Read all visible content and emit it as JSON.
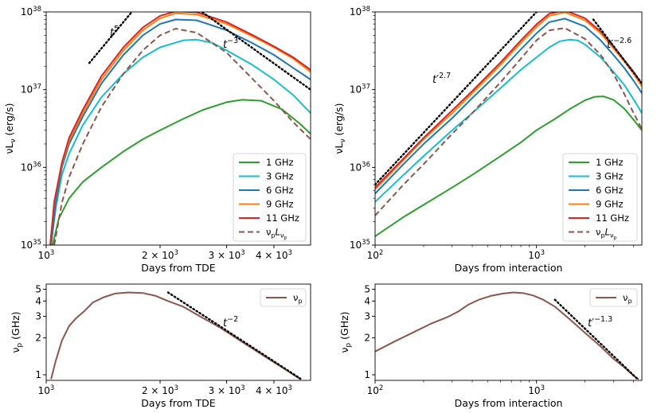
{
  "chart_data": [
    {
      "id": "tl",
      "type": "line",
      "xscale": "log",
      "yscale": "log",
      "xlim": [
        1000,
        5000
      ],
      "ylim": [
        1e+35,
        1e+38
      ],
      "xlabel": "Days from TDE",
      "ylabel_main": "νL",
      "ylabel_sub": "ν",
      "ylabel_unit": " (erg/s)",
      "xticks": [
        {
          "v": 1000,
          "base": "10",
          "exp": "3"
        },
        {
          "v": 2000,
          "base": "2 × 10",
          "exp": "3"
        },
        {
          "v": 3000,
          "base": "3 × 10",
          "exp": "3"
        },
        {
          "v": 4000,
          "base": "4 × 10",
          "exp": "3"
        }
      ],
      "yticks": [
        {
          "v": 1e+35,
          "base": "10",
          "exp": "35"
        },
        {
          "v": 1e+36,
          "base": "10",
          "exp": "36"
        },
        {
          "v": 1e+37,
          "base": "10",
          "exp": "37"
        },
        {
          "v": 1e+38,
          "base": "10",
          "exp": "38"
        }
      ],
      "series": [
        {
          "name": "1 GHz",
          "color": "#2ca02c",
          "x": [
            1040,
            1080,
            1150,
            1250,
            1400,
            1600,
            1800,
            2000,
            2300,
            2600,
            3000,
            3300,
            3700,
            4200,
            4700,
            5000
          ],
          "y": [
            1e+35,
            2.2e+35,
            4e+35,
            6.5e+35,
            1e+36,
            1.6e+36,
            2.3e+36,
            3e+36,
            4.2e+36,
            5.5e+36,
            6.9e+36,
            7.4e+36,
            7.2e+36,
            5.6e+36,
            3.6e+36,
            2.7e+36
          ]
        },
        {
          "name": "3 GHz",
          "color": "#17becf",
          "x": [
            1030,
            1060,
            1100,
            1150,
            1250,
            1400,
            1600,
            1800,
            2000,
            2300,
            2500,
            2750,
            3000,
            3500,
            4000,
            4500,
            5000
          ],
          "y": [
            1e+35,
            3e+35,
            8e+35,
            1.5e+36,
            3.5e+36,
            8e+36,
            1.6e+37,
            2.6e+37,
            3.5e+37,
            4.3e+37,
            4.4e+37,
            4e+37,
            3.2e+37,
            2.1e+37,
            1.35e+37,
            8.5e+36,
            5e+36
          ]
        },
        {
          "name": "6 GHz",
          "color": "#1f77b4",
          "x": [
            1030,
            1060,
            1100,
            1150,
            1250,
            1400,
            1600,
            1800,
            2000,
            2200,
            2500,
            3000,
            3500,
            4000,
            4500,
            5000
          ],
          "y": [
            1e+35,
            3.5e+35,
            1e+36,
            2e+36,
            4.5e+36,
            1.2e+37,
            2.8e+37,
            5e+37,
            7e+37,
            8e+37,
            7.8e+37,
            5.8e+37,
            4e+37,
            2.8e+37,
            1.9e+37,
            1.35e+37
          ]
        },
        {
          "name": "9 GHz",
          "color": "#ff7f0e",
          "x": [
            1025,
            1050,
            1100,
            1150,
            1250,
            1400,
            1600,
            1800,
            2000,
            2200,
            2500,
            3000,
            3500,
            4000,
            4500,
            5000
          ],
          "y": [
            1e+35,
            3.5e+35,
            1.1e+36,
            2.2e+36,
            5e+36,
            1.35e+37,
            3.2e+37,
            5.8e+37,
            8.3e+37,
            9.6e+37,
            9.3e+37,
            7e+37,
            4.9e+37,
            3.5e+37,
            2.5e+37,
            1.7e+37
          ]
        },
        {
          "name": "11 GHz",
          "color": "#d62728",
          "x": [
            1025,
            1050,
            1100,
            1150,
            1250,
            1400,
            1600,
            1800,
            2000,
            2200,
            2500,
            3000,
            3500,
            4000,
            4500,
            5000
          ],
          "y": [
            1e+35,
            3.6e+35,
            1.15e+36,
            2.4e+36,
            5.5e+36,
            1.5e+37,
            3.5e+37,
            6.3e+37,
            8.9e+37,
            1.02e+38,
            9.9e+37,
            7.4e+37,
            5.1e+37,
            3.6e+37,
            2.6e+37,
            1.8e+37
          ]
        },
        {
          "name": "ν_pL_ν_p",
          "color": "#8c564b",
          "dash": "7,4",
          "x": [
            1050,
            1100,
            1150,
            1250,
            1400,
            1600,
            1800,
            2000,
            2200,
            2500,
            3000,
            3500,
            4000,
            4500,
            5000
          ],
          "y": [
            1e+35,
            3.5e+35,
            7.5e+35,
            2e+36,
            6e+36,
            1.6e+37,
            3.2e+37,
            5e+37,
            6.1e+37,
            5.4e+37,
            3e+37,
            1.4e+37,
            7.2e+36,
            3.8e+36,
            2.3e+36
          ]
        }
      ],
      "guides": [
        {
          "label_base": "t",
          "label_exp": "5",
          "x": [
            1300,
            1750
          ],
          "y": [
            2.2e+37,
            1.25e+38
          ]
        },
        {
          "label_base": "t",
          "label_exp": "−3",
          "x": [
            2450,
            5000
          ],
          "y": [
            1.2e+38,
            1e+37
          ]
        }
      ]
    },
    {
      "id": "tr",
      "type": "line",
      "xscale": "log",
      "yscale": "log",
      "xlim": [
        100,
        4500
      ],
      "ylim": [
        1e+35,
        1e+38
      ],
      "xlabel": "Days from interaction",
      "ylabel_main": "νL",
      "ylabel_sub": "ν",
      "ylabel_unit": " (erg/s)",
      "xticks": [
        {
          "v": 100,
          "base": "10",
          "exp": "2"
        },
        {
          "v": 1000,
          "base": "10",
          "exp": "3"
        }
      ],
      "yticks": [
        {
          "v": 1e+35,
          "base": "10",
          "exp": "35"
        },
        {
          "v": 1e+36,
          "base": "10",
          "exp": "36"
        },
        {
          "v": 1e+37,
          "base": "10",
          "exp": "37"
        },
        {
          "v": 1e+38,
          "base": "10",
          "exp": "38"
        }
      ],
      "series": [
        {
          "name": "1 GHz",
          "color": "#2ca02c",
          "x": [
            100,
            150,
            200,
            300,
            400,
            600,
            800,
            1000,
            1300,
            1600,
            2000,
            2300,
            2600,
            3000,
            3500,
            4000,
            4500
          ],
          "y": [
            1.3e+35,
            2.3e+35,
            3.3e+35,
            5.5e+35,
            8e+35,
            1.4e+36,
            2.1e+36,
            3e+36,
            4.2e+36,
            5.6e+36,
            7.3e+36,
            8.1e+36,
            8.2e+36,
            7.4e+36,
            5.7e+36,
            4.1e+36,
            3e+36
          ]
        },
        {
          "name": "3 GHz",
          "color": "#17becf",
          "x": [
            100,
            150,
            200,
            300,
            400,
            600,
            800,
            1000,
            1200,
            1400,
            1600,
            1800,
            2000,
            2500,
            3000,
            3500,
            4000,
            4500
          ],
          "y": [
            3.6e+35,
            8e+35,
            1.4e+36,
            3e+36,
            5e+36,
            1.05e+37,
            1.8e+37,
            2.6e+37,
            3.5e+37,
            4.2e+37,
            4.4e+37,
            4.3e+37,
            3.8e+37,
            2.6e+37,
            1.7e+37,
            1.15e+37,
            7.5e+36,
            5e+36
          ]
        },
        {
          "name": "6 GHz",
          "color": "#1f77b4",
          "x": [
            100,
            150,
            200,
            300,
            400,
            600,
            800,
            1000,
            1200,
            1500,
            2000,
            2500,
            3000,
            3500,
            4000,
            4500
          ],
          "y": [
            4.6e+35,
            1.1e+36,
            2e+36,
            4.3e+36,
            7.8e+36,
            1.75e+37,
            3.3e+37,
            5.3e+37,
            7.4e+37,
            8.2e+37,
            6.5e+37,
            4.3e+37,
            2.8e+37,
            1.9e+37,
            1.3e+37,
            9e+36
          ]
        },
        {
          "name": "9 GHz",
          "color": "#ff7f0e",
          "x": [
            100,
            150,
            200,
            300,
            400,
            600,
            800,
            1000,
            1200,
            1500,
            2000,
            2500,
            3000,
            3500,
            4000,
            4500
          ],
          "y": [
            5.2e+35,
            1.25e+36,
            2.3e+36,
            5e+36,
            9e+36,
            2.1e+37,
            4e+37,
            6.4e+37,
            8.9e+37,
            9.9e+37,
            7.8e+37,
            5.3e+37,
            3.4e+37,
            2.3e+37,
            1.6e+37,
            1.1e+37
          ]
        },
        {
          "name": "11 GHz",
          "color": "#d62728",
          "x": [
            100,
            150,
            200,
            300,
            400,
            600,
            800,
            1000,
            1200,
            1500,
            2000,
            2500,
            3000,
            3500,
            4000,
            4500
          ],
          "y": [
            5.5e+35,
            1.3e+36,
            2.4e+36,
            5.4e+36,
            9.6e+36,
            2.25e+37,
            4.3e+37,
            6.9e+37,
            9.5e+37,
            1.05e+38,
            8.3e+37,
            5.6e+37,
            3.6e+37,
            2.4e+37,
            1.7e+37,
            1.2e+37
          ]
        },
        {
          "name": "ν_pL_ν_p",
          "color": "#8c564b",
          "dash": "7,4",
          "x": [
            100,
            150,
            200,
            300,
            400,
            600,
            800,
            1000,
            1200,
            1500,
            2000,
            2500,
            3000,
            3500,
            4000,
            4500
          ],
          "y": [
            2.4e+35,
            6e+35,
            1.1e+36,
            2.7e+36,
            5e+36,
            1.25e+37,
            2.5e+37,
            4.3e+37,
            5.8e+37,
            6.2e+37,
            4.5e+37,
            2.8e+37,
            1.6e+37,
            8.8e+36,
            5e+36,
            3.1e+36
          ]
        }
      ],
      "guides": [
        {
          "label_base": "t",
          "label_prime": "′",
          "label_exp": "2.7",
          "x": [
            100,
            1000
          ],
          "y": [
            6e+35,
            1e+38
          ]
        },
        {
          "label_base": "t",
          "label_prime": "′",
          "label_exp": "−2.6",
          "x": [
            2250,
            4500
          ],
          "y": [
            8e+37,
            1.2e+37
          ]
        }
      ]
    },
    {
      "id": "bl",
      "type": "line",
      "xscale": "log",
      "yscale": "log",
      "xlim": [
        1000,
        5000
      ],
      "ylim": [
        0.9,
        5.5
      ],
      "xlabel": "Days from TDE",
      "ylabel_main": "ν",
      "ylabel_sub": "p",
      "ylabel_unit": " (GHz)",
      "xticks": [
        {
          "v": 1000,
          "base": "10",
          "exp": "3"
        },
        {
          "v": 2000,
          "base": "2 × 10",
          "exp": "3"
        },
        {
          "v": 3000,
          "base": "3 × 10",
          "exp": "3"
        },
        {
          "v": 4000,
          "base": "4 × 10",
          "exp": "3"
        }
      ],
      "yticks": [
        {
          "v": 1,
          "label": "1"
        },
        {
          "v": 2,
          "label": "2"
        },
        {
          "v": 3,
          "label": "3"
        },
        {
          "v": 4,
          "label": "4"
        },
        {
          "v": 5,
          "label": "5"
        }
      ],
      "series": [
        {
          "name": "ν_p",
          "color": "#8c564b",
          "x": [
            1030,
            1060,
            1100,
            1150,
            1200,
            1260,
            1330,
            1420,
            1520,
            1650,
            1800,
            1950,
            2100,
            2300,
            2550,
            2900,
            3300,
            3800,
            4300,
            4700
          ],
          "y": [
            0.92,
            1.3,
            1.9,
            2.5,
            2.9,
            3.3,
            3.9,
            4.3,
            4.6,
            4.7,
            4.65,
            4.4,
            4.0,
            3.6,
            3.0,
            2.4,
            1.85,
            1.4,
            1.1,
            0.92
          ]
        }
      ],
      "guides": [
        {
          "label_base": "t",
          "label_exp": "−2",
          "x": [
            2100,
            4700
          ],
          "y": [
            4.7,
            0.93
          ]
        }
      ]
    },
    {
      "id": "br",
      "type": "line",
      "xscale": "log",
      "yscale": "log",
      "xlim": [
        100,
        4500
      ],
      "ylim": [
        0.9,
        5.5
      ],
      "xlabel": "Days from interaction",
      "ylabel_main": "ν",
      "ylabel_sub": "p",
      "ylabel_unit": " (GHz)",
      "xticks": [
        {
          "v": 100,
          "base": "10",
          "exp": "2"
        },
        {
          "v": 1000,
          "base": "10",
          "exp": "3"
        }
      ],
      "yticks": [
        {
          "v": 1,
          "label": "1"
        },
        {
          "v": 2,
          "label": "2"
        },
        {
          "v": 3,
          "label": "3"
        },
        {
          "v": 4,
          "label": "4"
        },
        {
          "v": 5,
          "label": "5"
        }
      ],
      "series": [
        {
          "name": "ν_p",
          "color": "#8c564b",
          "x": [
            100,
            130,
            170,
            220,
            280,
            330,
            380,
            440,
            520,
            620,
            720,
            820,
            950,
            1100,
            1300,
            1600,
            2000,
            2500,
            3000,
            3500,
            4000,
            4300
          ],
          "y": [
            1.55,
            1.85,
            2.2,
            2.6,
            2.95,
            3.3,
            3.75,
            4.1,
            4.4,
            4.6,
            4.7,
            4.65,
            4.45,
            4.1,
            3.6,
            2.85,
            2.2,
            1.7,
            1.35,
            1.15,
            0.98,
            0.92
          ]
        }
      ],
      "guides": [
        {
          "label_base": "t",
          "label_prime": "′",
          "label_exp": "−1.3",
          "x": [
            1300,
            4200
          ],
          "y": [
            4.1,
            0.93
          ]
        }
      ]
    }
  ]
}
